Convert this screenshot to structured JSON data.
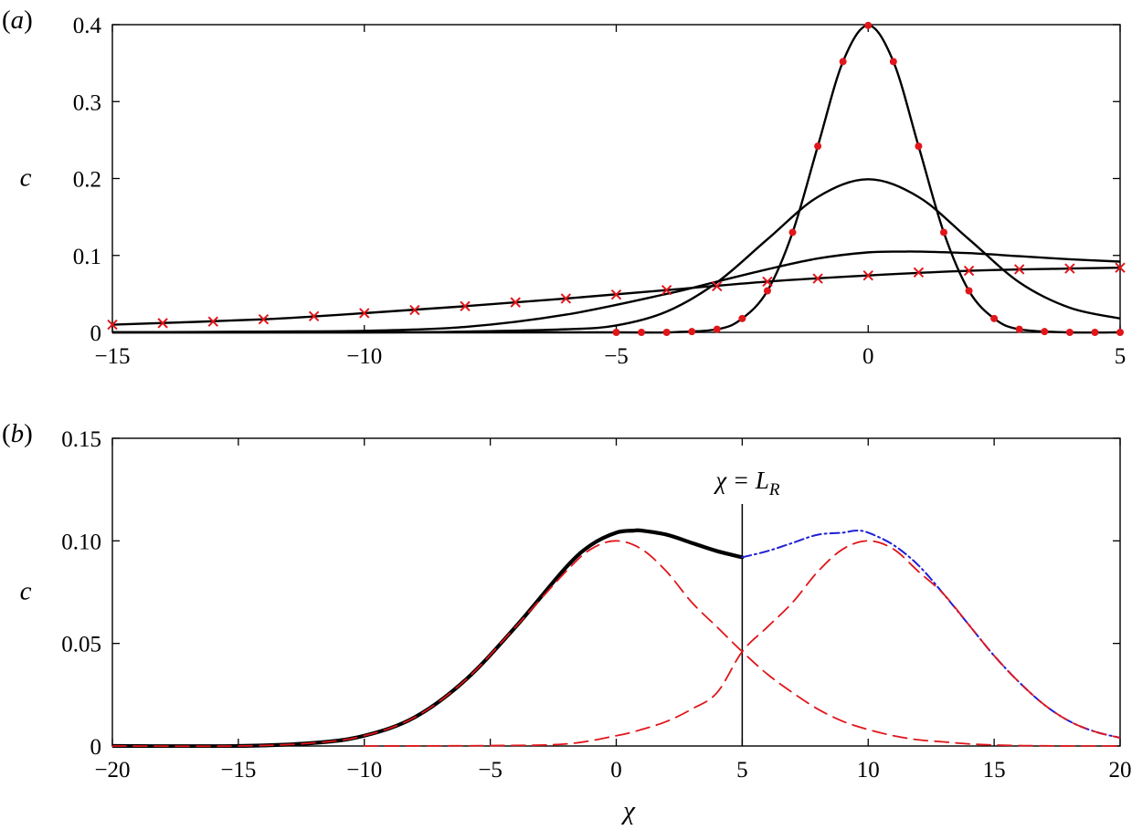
{
  "chart_data": [
    {
      "panel": "(a)",
      "type": "line",
      "xlabel": "",
      "ylabel": "c",
      "xlim": [
        -15,
        5
      ],
      "ylim": [
        0,
        0.4
      ],
      "xticks": [
        -15,
        -10,
        -5,
        0,
        5
      ],
      "xtick_labels": [
        "−15",
        "−10",
        "−5",
        "0",
        "5"
      ],
      "yticks": [
        0,
        0.1,
        0.2,
        0.3,
        0.4
      ],
      "ytick_labels": [
        "0",
        "0.1",
        "0.2",
        "0.3",
        "0.4"
      ],
      "grid": false,
      "series": [
        {
          "style": "black-solid",
          "x": [
            -15,
            -10,
            -5,
            -4,
            -3,
            -2.5,
            -2,
            -1.5,
            -1,
            -0.5,
            0,
            0.5,
            1,
            1.5,
            2,
            2.5,
            3,
            4,
            5
          ],
          "y": [
            0,
            0,
            0,
            0,
            0.004,
            0.018,
            0.054,
            0.13,
            0.242,
            0.352,
            0.399,
            0.352,
            0.242,
            0.13,
            0.054,
            0.018,
            0.004,
            0,
            0
          ]
        },
        {
          "style": "black-solid",
          "x": [
            -15,
            -10,
            -8,
            -6,
            -5,
            -4,
            -3,
            -2,
            -1,
            0,
            1,
            2,
            3,
            4,
            5
          ],
          "y": [
            0,
            0,
            0.001,
            0.004,
            0.009,
            0.027,
            0.065,
            0.121,
            0.176,
            0.199,
            0.176,
            0.121,
            0.065,
            0.032,
            0.018
          ]
        },
        {
          "style": "black-solid",
          "x": [
            -15,
            -12,
            -10,
            -8,
            -6,
            -4,
            -3,
            -2,
            -1,
            0,
            0.7,
            1,
            2,
            3,
            4,
            5
          ],
          "y": [
            0,
            0.001,
            0.002,
            0.007,
            0.023,
            0.05,
            0.066,
            0.082,
            0.096,
            0.104,
            0.105,
            0.105,
            0.103,
            0.099,
            0.095,
            0.092
          ]
        },
        {
          "style": "black-solid",
          "x": [
            -15,
            -12,
            -10,
            -8,
            -6,
            -4,
            -2,
            0,
            2,
            4,
            5
          ],
          "y": [
            0.01,
            0.017,
            0.025,
            0.034,
            0.044,
            0.055,
            0.066,
            0.074,
            0.08,
            0.083,
            0.084
          ]
        }
      ],
      "markers": [
        {
          "style": "red-dot",
          "x": [
            -5,
            -4.5,
            -4,
            -3.5,
            -3,
            -2.5,
            -2,
            -1.5,
            -1,
            -0.5,
            0,
            0.5,
            1,
            1.5,
            2,
            2.5,
            3,
            3.5,
            4,
            4.5,
            5
          ],
          "y": [
            0,
            0,
            0,
            0.001,
            0.004,
            0.018,
            0.054,
            0.13,
            0.242,
            0.352,
            0.399,
            0.352,
            0.242,
            0.13,
            0.054,
            0.018,
            0.004,
            0.001,
            0,
            0,
            0
          ]
        },
        {
          "style": "red-cross",
          "x": [
            -15,
            -14,
            -13,
            -12,
            -11,
            -10,
            -9,
            -8,
            -7,
            -6,
            -5,
            -4,
            -3,
            -2,
            -1,
            0,
            1,
            2,
            3,
            4,
            5
          ],
          "y": [
            0.01,
            0.012,
            0.014,
            0.017,
            0.021,
            0.025,
            0.029,
            0.034,
            0.039,
            0.044,
            0.049,
            0.055,
            0.06,
            0.066,
            0.07,
            0.074,
            0.078,
            0.08,
            0.082,
            0.083,
            0.084
          ]
        }
      ]
    },
    {
      "panel": "(b)",
      "type": "line",
      "xlabel": "χ",
      "ylabel": "c",
      "xlim": [
        -20,
        20
      ],
      "ylim": [
        0,
        0.15
      ],
      "xticks": [
        -20,
        -15,
        -10,
        -5,
        0,
        5,
        10,
        15,
        20
      ],
      "xtick_labels": [
        "−20",
        "−15",
        "−10",
        "−5",
        "0",
        "5",
        "10",
        "15",
        "20"
      ],
      "yticks": [
        0,
        0.05,
        0.1,
        0.15
      ],
      "ytick_labels": [
        "0",
        "0.05",
        "0.10",
        "0.15"
      ],
      "grid": false,
      "annotation": {
        "text_main": "χ = L",
        "text_sub": "R",
        "x": 5
      },
      "series": [
        {
          "style": "black-thick",
          "x": [
            -20,
            -15,
            -12,
            -10,
            -8,
            -6,
            -4,
            -2,
            -1,
            0,
            0.7,
            1,
            2,
            3,
            4,
            5
          ],
          "y": [
            0,
            0,
            0.0015,
            0.005,
            0.014,
            0.032,
            0.058,
            0.087,
            0.098,
            0.104,
            0.105,
            0.105,
            0.103,
            0.099,
            0.095,
            0.092
          ]
        },
        {
          "style": "blue-dashdot",
          "x": [
            5,
            6,
            7,
            8,
            9,
            9.5,
            10,
            11,
            12,
            13,
            14,
            15,
            16,
            17,
            18,
            19,
            20
          ],
          "y": [
            0.092,
            0.095,
            0.099,
            0.103,
            0.104,
            0.105,
            0.104,
            0.098,
            0.088,
            0.074,
            0.059,
            0.044,
            0.031,
            0.02,
            0.012,
            0.007,
            0.004
          ]
        },
        {
          "style": "red-dashed",
          "x": [
            -20,
            -15,
            -12,
            -10,
            -8,
            -6,
            -4,
            -2,
            -1,
            0,
            1,
            2,
            3,
            4,
            5,
            6,
            7,
            8,
            9,
            10,
            11,
            12,
            13,
            14,
            15,
            16,
            17,
            18,
            19,
            20
          ],
          "y": [
            0,
            0,
            0.0015,
            0.005,
            0.014,
            0.032,
            0.058,
            0.085,
            0.096,
            0.1,
            0.096,
            0.085,
            0.07,
            0.058,
            0.046,
            0.035,
            0.026,
            0.018,
            0.012,
            0.008,
            0.005,
            0.003,
            0.002,
            0.001,
            0.0005,
            0.0002,
            0.0001,
            0,
            0,
            0
          ]
        },
        {
          "style": "red-dashed",
          "x": [
            -10,
            -5,
            -2,
            0,
            1,
            2,
            3,
            4,
            5,
            6,
            7,
            8,
            9,
            10,
            11,
            12,
            13,
            14,
            15,
            16,
            17,
            18,
            19,
            20
          ],
          "y": [
            0,
            0.0002,
            0.001,
            0.005,
            0.008,
            0.012,
            0.018,
            0.026,
            0.046,
            0.058,
            0.07,
            0.085,
            0.096,
            0.1,
            0.096,
            0.085,
            0.074,
            0.059,
            0.044,
            0.031,
            0.02,
            0.012,
            0.007,
            0.004
          ]
        }
      ],
      "vline": {
        "x": 5
      }
    }
  ]
}
